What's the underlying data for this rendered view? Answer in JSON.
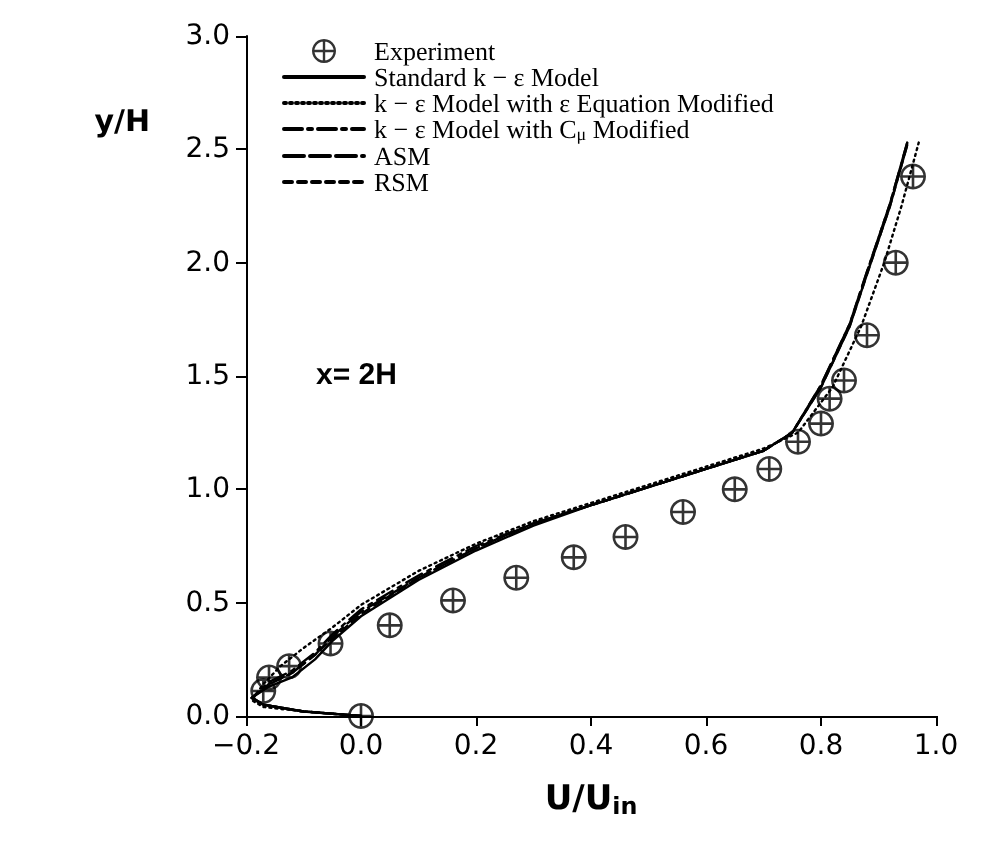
{
  "chart_data": {
    "type": "line",
    "xlabel": "U/U$_{in}$",
    "ylabel": "y/H",
    "annotations": [
      "x= 2H"
    ],
    "xlim": [
      -0.2,
      1.0
    ],
    "xticks": [
      {
        "value": -0.2,
        "label": "−0.2"
      },
      {
        "value": 0,
        "label": "0.0"
      },
      0.2,
      0.4,
      0.6,
      0.8,
      {
        "value": 1,
        "label": "1.0"
      }
    ],
    "ylim": [
      0,
      3
    ],
    "yticks": [
      {
        "value": 0,
        "label": "0.0"
      },
      0.5,
      {
        "value": 1,
        "label": "1.0"
      },
      1.5,
      {
        "value": 2,
        "label": "2.0"
      },
      2.5,
      {
        "value": 3,
        "label": "3.0"
      }
    ],
    "grid": false,
    "legend": "top left",
    "series": [
      {
        "name": "Experiment",
        "type": "scatter",
        "marker": "circle",
        "color": "#000000",
        "x": [
          0.0,
          -0.17,
          -0.16,
          -0.125,
          -0.053,
          0.05,
          0.16,
          0.27,
          0.37,
          0.46,
          0.56,
          0.65,
          0.71,
          0.76,
          0.8,
          0.815,
          0.84,
          0.88,
          0.93,
          0.96
        ],
        "values": [
          0.0,
          0.11,
          0.17,
          0.22,
          0.32,
          0.4,
          0.51,
          0.61,
          0.7,
          0.79,
          0.9,
          1.0,
          1.09,
          1.21,
          1.29,
          1.4,
          1.48,
          1.68,
          2.0,
          2.38
        ]
      },
      {
        "name": "Standard k − ε Model",
        "line_style": "solid",
        "color": "#000000",
        "x": [
          0.0,
          -0.1,
          -0.17,
          -0.19,
          -0.16,
          -0.12,
          -0.08,
          -0.05,
          0.0,
          0.1,
          0.2,
          0.3,
          0.4,
          0.5,
          0.6,
          0.7,
          0.75,
          0.8,
          0.85,
          0.88,
          0.92,
          0.95
        ],
        "values": [
          0.0,
          0.02,
          0.05,
          0.08,
          0.13,
          0.17,
          0.25,
          0.33,
          0.44,
          0.6,
          0.73,
          0.84,
          0.93,
          1.01,
          1.09,
          1.17,
          1.25,
          1.45,
          1.72,
          1.95,
          2.25,
          2.52
        ]
      },
      {
        "name": "k − ε Model with ε Equation Modified",
        "line_style": "dotted",
        "color": "#000000",
        "x": [
          0.0,
          -0.1,
          -0.17,
          -0.19,
          -0.17,
          -0.14,
          -0.1,
          -0.05,
          0.0,
          0.1,
          0.2,
          0.3,
          0.4,
          0.5,
          0.6,
          0.7,
          0.76,
          0.82,
          0.87,
          0.91,
          0.94,
          0.97
        ],
        "values": [
          0.0,
          0.02,
          0.04,
          0.07,
          0.14,
          0.22,
          0.3,
          0.39,
          0.49,
          0.64,
          0.76,
          0.86,
          0.94,
          1.02,
          1.1,
          1.18,
          1.25,
          1.45,
          1.72,
          2.0,
          2.25,
          2.53
        ]
      },
      {
        "name": "k − ε Model with C$_{μ}$ Modified",
        "line_style": "dashdot",
        "color": "#000000",
        "x": [
          0.0,
          -0.1,
          -0.17,
          -0.19,
          -0.16,
          -0.12,
          -0.08,
          -0.05,
          0.0,
          0.1,
          0.2,
          0.3,
          0.4,
          0.5,
          0.6,
          0.7,
          0.75,
          0.8,
          0.85,
          0.88,
          0.92,
          0.95
        ],
        "values": [
          0.0,
          0.02,
          0.05,
          0.08,
          0.15,
          0.2,
          0.28,
          0.36,
          0.47,
          0.62,
          0.75,
          0.85,
          0.93,
          1.01,
          1.09,
          1.17,
          1.25,
          1.46,
          1.73,
          1.96,
          2.26,
          2.53
        ]
      },
      {
        "name": "ASM",
        "line_style": "longdash",
        "color": "#000000",
        "x": [
          0.0,
          -0.1,
          -0.17,
          -0.19,
          -0.16,
          -0.12,
          -0.08,
          -0.05,
          0.0,
          0.1,
          0.2,
          0.3,
          0.4,
          0.5,
          0.6,
          0.7,
          0.75,
          0.8,
          0.85,
          0.88,
          0.92,
          0.95
        ],
        "values": [
          0.0,
          0.02,
          0.05,
          0.08,
          0.14,
          0.19,
          0.27,
          0.35,
          0.46,
          0.61,
          0.74,
          0.85,
          0.93,
          1.01,
          1.09,
          1.17,
          1.25,
          1.46,
          1.73,
          1.96,
          2.26,
          2.53
        ]
      },
      {
        "name": "RSM",
        "line_style": "dashed",
        "color": "#000000",
        "x": [
          0.0,
          -0.1,
          -0.17,
          -0.19,
          -0.16,
          -0.12,
          -0.08,
          -0.05,
          0.0,
          0.1,
          0.2,
          0.3,
          0.4,
          0.5,
          0.6,
          0.7,
          0.75,
          0.8,
          0.85,
          0.88,
          0.92,
          0.95
        ],
        "values": [
          0.0,
          0.02,
          0.05,
          0.08,
          0.14,
          0.19,
          0.27,
          0.34,
          0.45,
          0.61,
          0.74,
          0.85,
          0.93,
          1.01,
          1.09,
          1.17,
          1.25,
          1.45,
          1.72,
          1.95,
          2.25,
          2.52
        ]
      }
    ]
  }
}
